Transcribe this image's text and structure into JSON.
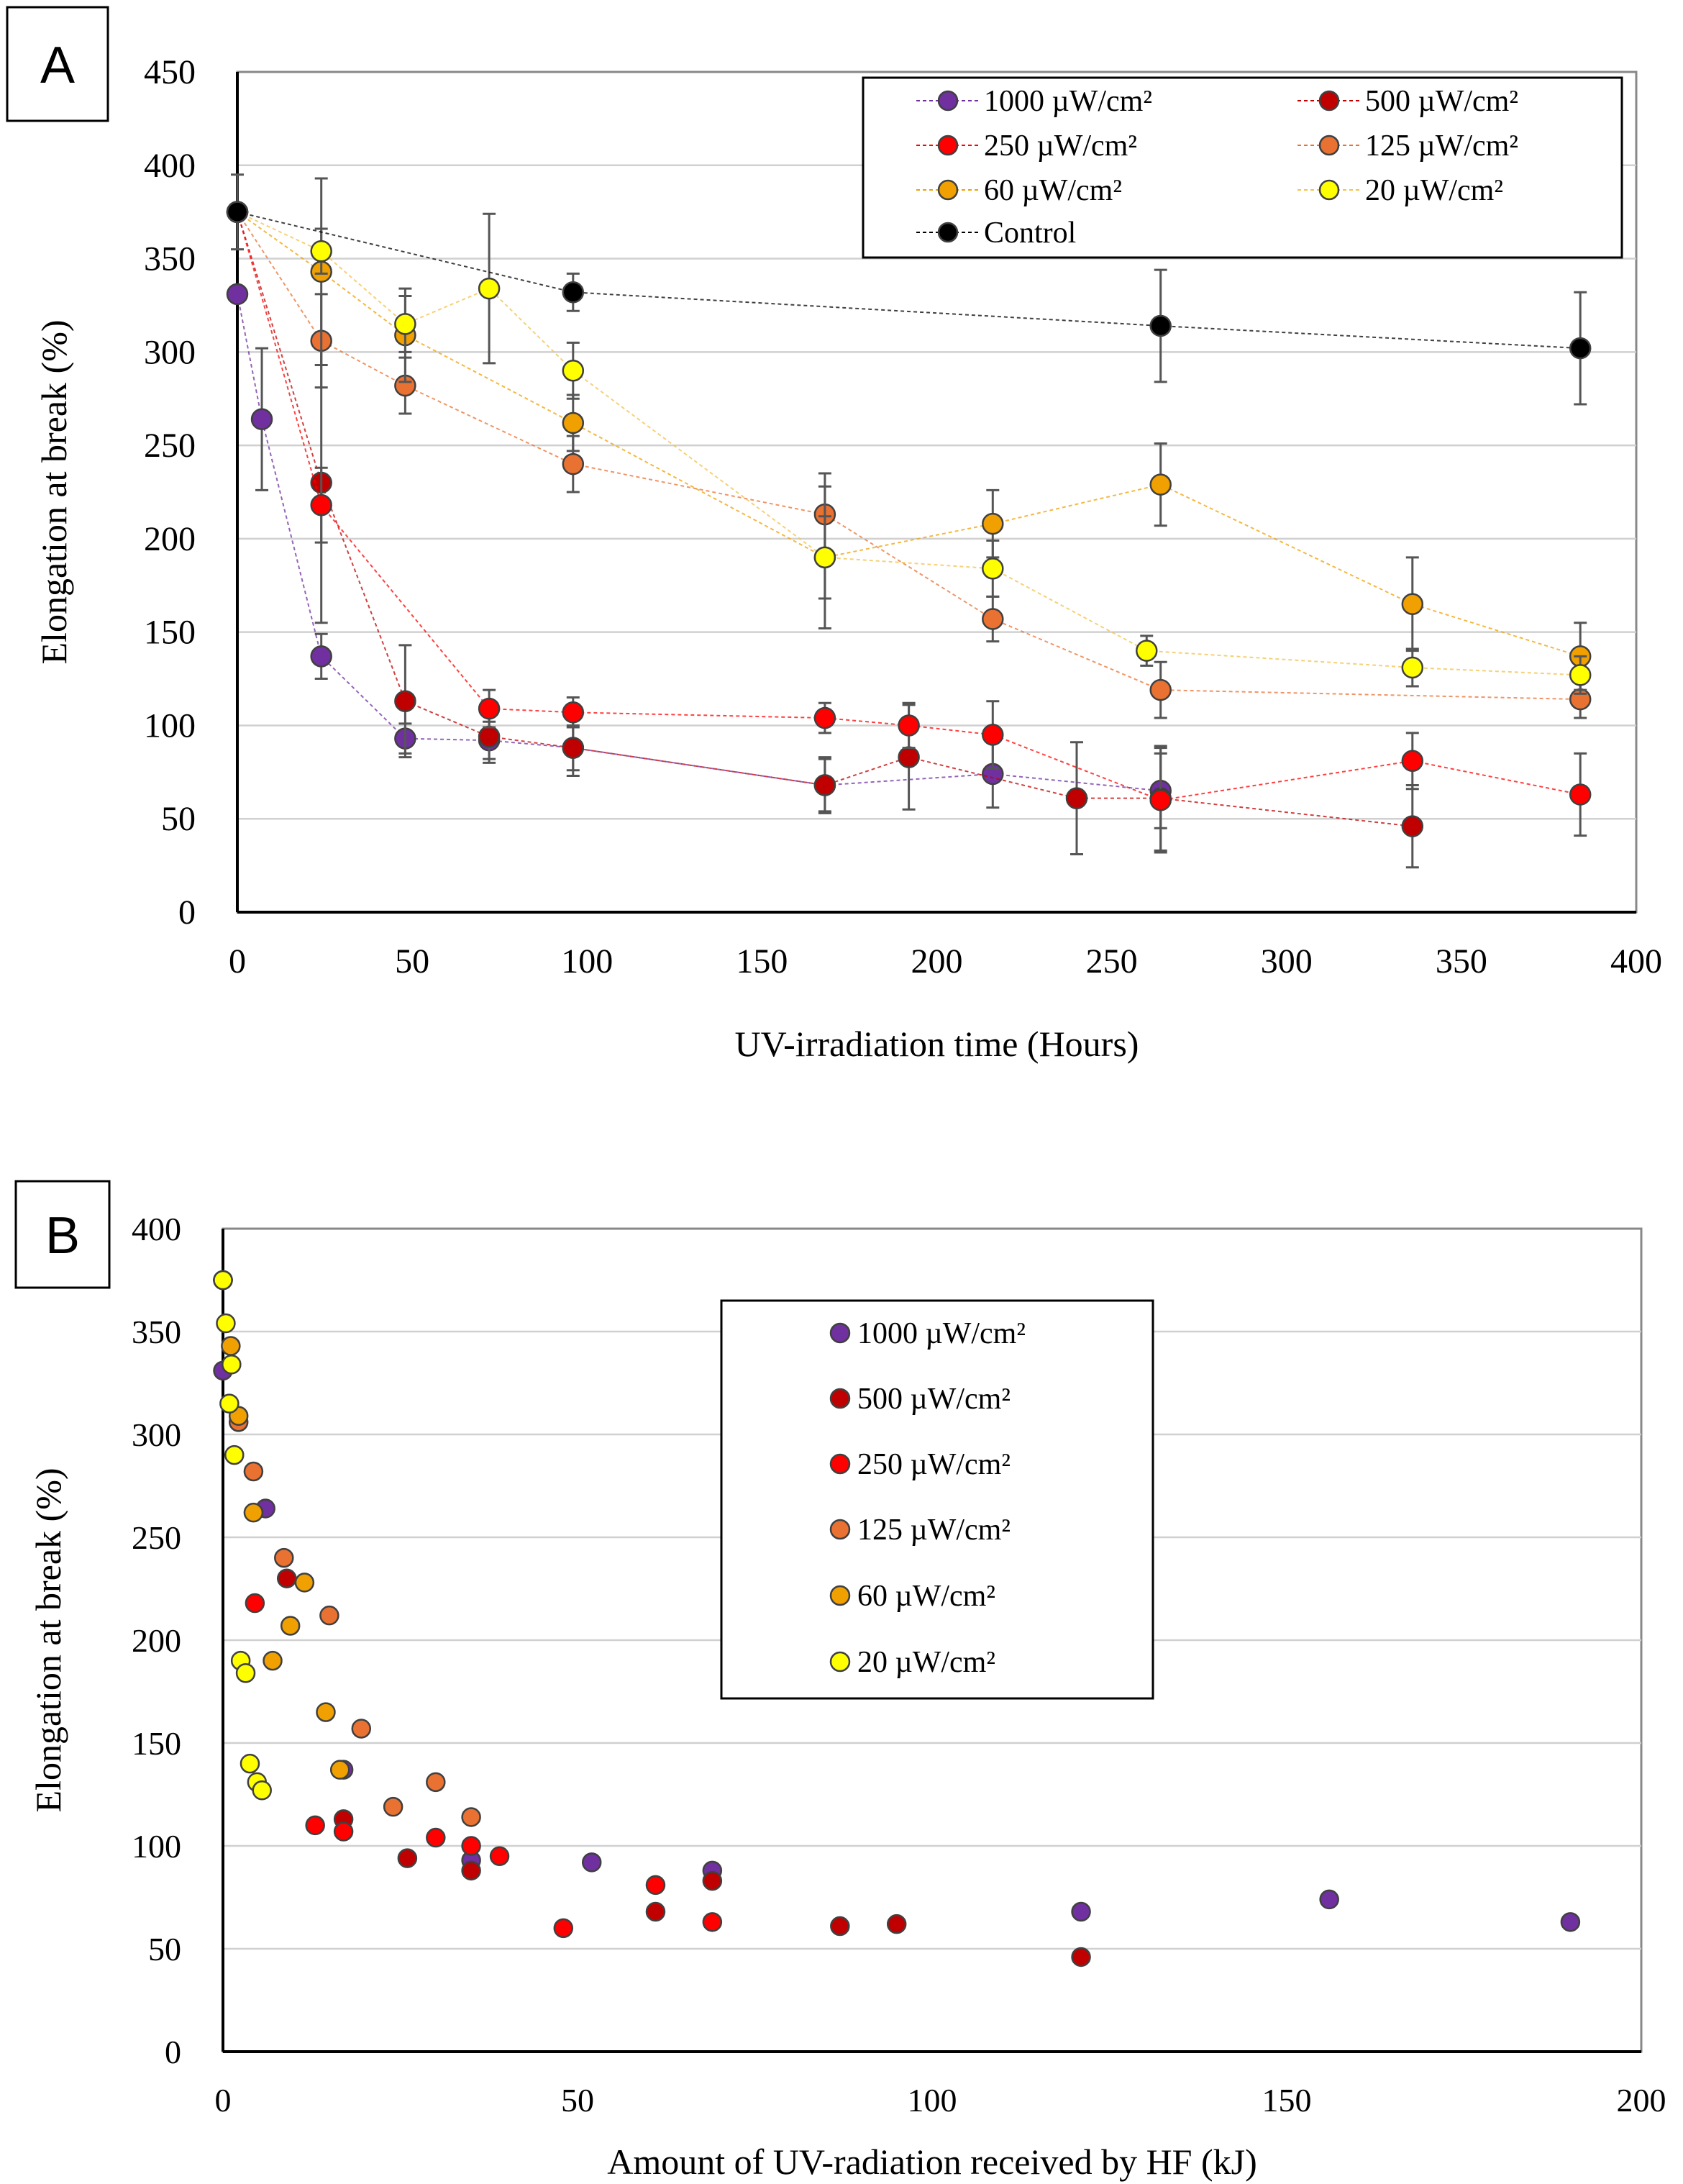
{
  "figure": {
    "panels": [
      {
        "key": "A",
        "panel_label": "A",
        "xlabel": "UV-irradiation time (Hours)",
        "ylabel": "Elongation at break (%)",
        "xlim": [
          0,
          400
        ],
        "ylim": [
          0,
          450
        ],
        "xticks": [
          0,
          50,
          100,
          150,
          200,
          250,
          300,
          350,
          400
        ],
        "yticks": [
          0,
          50,
          100,
          150,
          200,
          250,
          300,
          350,
          400,
          450
        ]
      },
      {
        "key": "B",
        "panel_label": "B",
        "xlabel": "Amount of UV-radiation received by HF (kJ)",
        "ylabel": "Elongation at break (%)",
        "xlim": [
          0,
          200
        ],
        "ylim": [
          0,
          400
        ],
        "xticks": [
          0,
          50,
          100,
          150,
          200
        ],
        "yticks": [
          0,
          50,
          100,
          150,
          200,
          250,
          300,
          350,
          400
        ]
      }
    ]
  },
  "chart_data": [
    {
      "panel": "A",
      "type": "line",
      "title": "",
      "xlabel": "UV-irradiation time (Hours)",
      "ylabel": "Elongation at break (%)",
      "xlim": [
        0,
        400
      ],
      "ylim": [
        0,
        450
      ],
      "grid": true,
      "legend_position": "top-right",
      "series": [
        {
          "name": "1000 µW/cm²",
          "color": "#7030a0",
          "x": [
            0,
            7,
            24,
            48,
            72,
            96,
            168,
            216,
            264
          ],
          "y": [
            331,
            264,
            137,
            93,
            92,
            88,
            68,
            74,
            65
          ],
          "err": [
            0,
            38,
            12,
            8,
            10,
            12,
            14,
            18,
            20
          ]
        },
        {
          "name": "500 µW/cm²",
          "color": "#c00000",
          "x": [
            0,
            24,
            48,
            72,
            96,
            168,
            192,
            240,
            264,
            336
          ],
          "y": [
            375,
            230,
            113,
            94,
            88,
            68,
            83,
            61,
            61,
            46
          ],
          "err": [
            0,
            75,
            30,
            14,
            15,
            15,
            28,
            30,
            28,
            22
          ]
        },
        {
          "name": "250 µW/cm²",
          "color": "#ff0000",
          "x": [
            0,
            24,
            72,
            96,
            168,
            192,
            216,
            264,
            336,
            384
          ],
          "y": [
            375,
            218,
            109,
            107,
            104,
            100,
            95,
            60,
            81,
            63
          ],
          "err": [
            0,
            20,
            10,
            8,
            8,
            12,
            18,
            28,
            15,
            22
          ]
        },
        {
          "name": "125 µW/cm²",
          "color": "#e97132",
          "x": [
            0,
            24,
            48,
            96,
            168,
            216,
            264,
            384
          ],
          "y": [
            375,
            306,
            282,
            240,
            213,
            157,
            119,
            114
          ],
          "err": [
            0,
            25,
            15,
            15,
            22,
            12,
            15,
            10
          ]
        },
        {
          "name": "60 µW/cm²",
          "color": "#f0a000",
          "x": [
            0,
            24,
            48,
            96,
            168,
            216,
            264,
            336,
            384
          ],
          "y": [
            375,
            343,
            309,
            262,
            190,
            208,
            229,
            165,
            137
          ],
          "err": [
            0,
            50,
            25,
            15,
            22,
            18,
            22,
            25,
            18
          ]
        },
        {
          "name": "20 µW/cm²",
          "color": "#ffff00",
          "x": [
            0,
            24,
            48,
            72,
            96,
            168,
            216,
            260,
            336,
            384
          ],
          "y": [
            375,
            354,
            315,
            334,
            290,
            190,
            184,
            140,
            131,
            127
          ],
          "err": [
            0,
            12,
            15,
            40,
            15,
            38,
            15,
            8,
            10,
            10
          ]
        },
        {
          "name": "Control",
          "color": "#000000",
          "x": [
            0,
            96,
            264,
            384
          ],
          "y": [
            375,
            332,
            314,
            302
          ],
          "err": [
            20,
            10,
            30,
            30
          ]
        }
      ]
    },
    {
      "panel": "B",
      "type": "scatter",
      "title": "",
      "xlabel": "Amount of UV-radiation received by HF (kJ)",
      "ylabel": "Elongation at break (%)",
      "xlim": [
        0,
        200
      ],
      "ylim": [
        0,
        400
      ],
      "grid": true,
      "legend_position": "top-right",
      "series": [
        {
          "name": "1000 µW/cm²",
          "color": "#7030a0",
          "points": [
            [
              0,
              331
            ],
            [
              6,
              264
            ],
            [
              17,
              137
            ],
            [
              35,
              93
            ],
            [
              52,
              92
            ],
            [
              69,
              88
            ],
            [
              121,
              68
            ],
            [
              156,
              74
            ],
            [
              190,
              63
            ]
          ]
        },
        {
          "name": "500 µW/cm²",
          "color": "#c00000",
          "points": [
            [
              0,
              375
            ],
            [
              9,
              230
            ],
            [
              17,
              113
            ],
            [
              26,
              94
            ],
            [
              35,
              88
            ],
            [
              61,
              68
            ],
            [
              69,
              83
            ],
            [
              87,
              61
            ],
            [
              95,
              62
            ],
            [
              121,
              46
            ]
          ]
        },
        {
          "name": "250 µW/cm²",
          "color": "#ff0000",
          "points": [
            [
              0,
              375
            ],
            [
              4.5,
              218
            ],
            [
              13,
              110
            ],
            [
              17,
              107
            ],
            [
              30,
              104
            ],
            [
              35,
              100
            ],
            [
              39,
              95
            ],
            [
              48,
              60
            ],
            [
              61,
              81
            ],
            [
              69,
              63
            ]
          ]
        },
        {
          "name": "125 µW/cm²",
          "color": "#e97132",
          "points": [
            [
              0,
              375
            ],
            [
              2.2,
              306
            ],
            [
              4.3,
              282
            ],
            [
              8.6,
              240
            ],
            [
              15,
              212
            ],
            [
              19.5,
              157
            ],
            [
              24,
              119
            ],
            [
              30,
              131
            ],
            [
              35,
              114
            ]
          ]
        },
        {
          "name": "60 µW/cm²",
          "color": "#f0a000",
          "points": [
            [
              0,
              375
            ],
            [
              1.1,
              343
            ],
            [
              2.2,
              309
            ],
            [
              4.3,
              262
            ],
            [
              7,
              190
            ],
            [
              9.5,
              207
            ],
            [
              11.5,
              228
            ],
            [
              14.5,
              165
            ],
            [
              16.5,
              137
            ]
          ]
        },
        {
          "name": "20 µW/cm²",
          "color": "#ffff00",
          "points": [
            [
              0,
              375
            ],
            [
              0.4,
              354
            ],
            [
              0.9,
              315
            ],
            [
              1.2,
              334
            ],
            [
              1.6,
              290
            ],
            [
              2.5,
              190
            ],
            [
              3.2,
              184
            ],
            [
              3.8,
              140
            ],
            [
              4.8,
              131
            ],
            [
              5.5,
              127
            ]
          ]
        }
      ]
    }
  ]
}
